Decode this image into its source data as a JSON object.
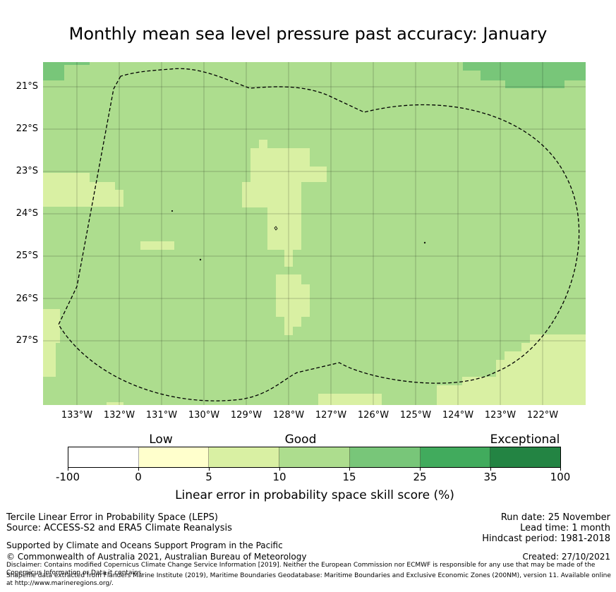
{
  "title": "Monthly mean sea level pressure past accuracy: January",
  "map": {
    "lat_labels": [
      "21°S",
      "22°S",
      "23°S",
      "24°S",
      "25°S",
      "26°S",
      "27°S"
    ],
    "lon_labels": [
      "133°W",
      "132°W",
      "131°W",
      "130°W",
      "129°W",
      "128°W",
      "127°W",
      "126°W",
      "125°W",
      "124°W",
      "123°W",
      "122°W"
    ],
    "lon_range": [
      -133.8,
      -121.0
    ],
    "lat_range": [
      -28.5,
      -20.4
    ],
    "eez_boundary": "dashed",
    "dominant_category": "Good (10-15)"
  },
  "legend": {
    "categories": [
      {
        "label": "Low",
        "value": 0
      },
      {
        "label": "Good",
        "value": 10
      },
      {
        "label": "Exceptional",
        "value": 35
      }
    ],
    "bins": [
      "-100",
      "0",
      "5",
      "10",
      "15",
      "25",
      "35",
      "100"
    ],
    "colors": [
      "#ffffff",
      "#ffffcc",
      "#d9f0a3",
      "#addd8e",
      "#78c679",
      "#41ab5d",
      "#238443"
    ],
    "title": "Linear error in probability space skill score (%)"
  },
  "footer": {
    "line1": "Tercile Linear Error in Probability Space (LEPS)",
    "line2": "Source: ACCESS-S2 and ERA5 Climate Reanalysis",
    "run_date": "Run date: 25 November",
    "lead_time": "Lead time: 1 month",
    "hindcast": "Hindcast period: 1981-2018",
    "supported": "Supported by Climate and Oceans Support Program in the Pacific",
    "copyright": "© Commonwealth of Australia 2021, Australian Bureau of Meteorology",
    "created": "Created: 27/10/2021",
    "disclaimer": "Disclaimer: Contains modified Copernicus Climate Change Service Information [2019]. Neither the European Commission nor ECMWF is responsible for any use that may be made of the Copernicus Information or Data it contains.",
    "shapefile": "Shapefile data extracted from Flanders Marine Institute (2019), Maritime Boundaries Geodatabase: Maritime Boundaries and Exclusive Economic Zones (200NM), version 11. Available online at http://www.marineregions.org/."
  }
}
